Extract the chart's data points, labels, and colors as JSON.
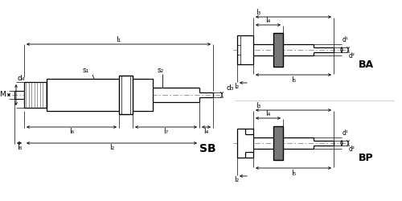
{
  "bg_color": "#ffffff",
  "line_color": "#000000",
  "gray_color": "#666666",
  "fs": 6.5,
  "fs_tag": 9,
  "labels": {
    "M": "M",
    "d4": "d₄",
    "d3": "d₃",
    "l1": "l₁",
    "l2": "l₂",
    "l4": "l₄",
    "l6": "l₆",
    "l7": "l₇",
    "l8": "l₈",
    "s1": "s₁",
    "s2": "s₂",
    "SB": "SB",
    "BA": "BA",
    "BP": "BP",
    "l3": "l₃",
    "l4r": "l₄",
    "l5": "l₅",
    "l2r": "l₂",
    "d1": "d¹",
    "d2": "d²"
  }
}
